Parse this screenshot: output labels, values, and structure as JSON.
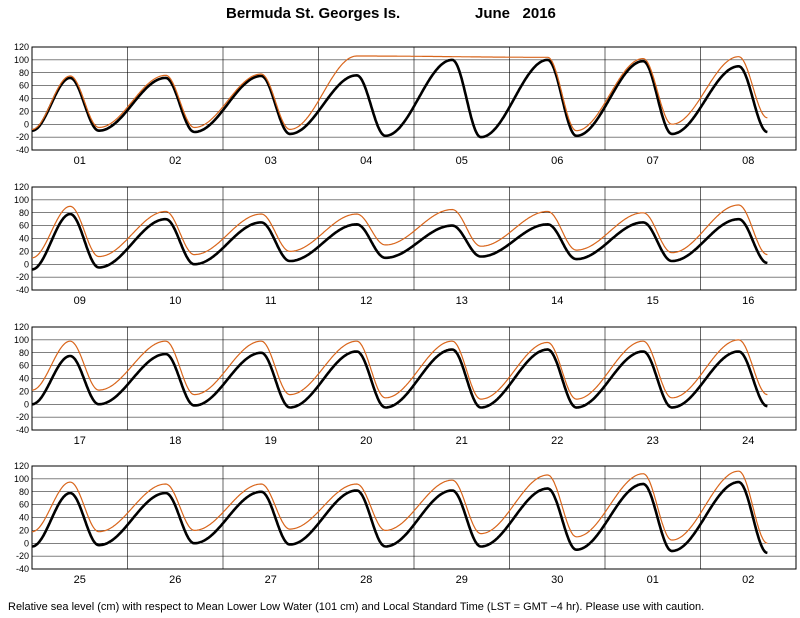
{
  "title": {
    "station": "Bermuda St. Georges Is.",
    "month": "June",
    "year": "2016"
  },
  "footer": "Relative sea level (cm) with respect to Mean Lower Low Water (101 cm) and Local Standard Time (LST = GMT −4 hr). Please use with caution.",
  "colors": {
    "observed": "#d9661c",
    "predicted": "#000000",
    "grid": "#000000"
  },
  "chart_data": [
    {
      "type": "line",
      "panel": 1,
      "ylim": [
        -40,
        120
      ],
      "yticks": [
        -40,
        -20,
        0,
        20,
        40,
        60,
        80,
        100,
        120
      ],
      "x_unit": "days",
      "days": [
        "01",
        "02",
        "03",
        "04",
        "05",
        "06",
        "07",
        "08"
      ],
      "series": [
        {
          "role": "predicted",
          "x": [
            0,
            0.4,
            0.7,
            1.4,
            1.7,
            2.4,
            2.7,
            3.4,
            3.7,
            4.4,
            4.7,
            5.4,
            5.7,
            6.4,
            6.7,
            7.4,
            7.7
          ],
          "y": [
            -10,
            72,
            -10,
            72,
            -12,
            75,
            -15,
            76,
            -18,
            100,
            -20,
            100,
            -18,
            98,
            -15,
            90,
            -12
          ]
        },
        {
          "role": "observed",
          "x": [
            0,
            0.4,
            0.7,
            1.4,
            1.7,
            2.4,
            2.7,
            3.4,
            5.4,
            5.7,
            6.4,
            6.7,
            7.4,
            7.7
          ],
          "y": [
            -8,
            75,
            -5,
            76,
            -5,
            78,
            -8,
            106,
            104,
            -10,
            102,
            0,
            105,
            10
          ]
        }
      ]
    },
    {
      "type": "line",
      "panel": 2,
      "ylim": [
        -40,
        120
      ],
      "yticks": [
        -40,
        -20,
        0,
        20,
        40,
        60,
        80,
        100,
        120
      ],
      "x_unit": "days",
      "days": [
        "09",
        "10",
        "11",
        "12",
        "13",
        "14",
        "15",
        "16"
      ],
      "series": [
        {
          "role": "predicted",
          "x": [
            0,
            0.4,
            0.7,
            1.4,
            1.7,
            2.4,
            2.7,
            3.4,
            3.7,
            4.4,
            4.7,
            5.4,
            5.7,
            6.4,
            6.7,
            7.4,
            7.7
          ],
          "y": [
            -8,
            78,
            -5,
            70,
            0,
            65,
            5,
            62,
            10,
            60,
            12,
            62,
            8,
            65,
            5,
            70,
            2
          ]
        },
        {
          "role": "observed",
          "x": [
            0,
            0.4,
            0.7,
            1.4,
            1.7,
            2.4,
            2.7,
            3.4,
            3.7,
            4.4,
            4.7,
            5.4,
            5.7,
            6.4,
            6.7,
            7.4,
            7.7
          ],
          "y": [
            10,
            90,
            12,
            82,
            15,
            78,
            20,
            78,
            30,
            85,
            28,
            82,
            22,
            80,
            18,
            92,
            15
          ]
        }
      ]
    },
    {
      "type": "line",
      "panel": 3,
      "ylim": [
        -40,
        120
      ],
      "yticks": [
        -40,
        -20,
        0,
        20,
        40,
        60,
        80,
        100,
        120
      ],
      "x_unit": "days",
      "days": [
        "17",
        "18",
        "19",
        "20",
        "21",
        "22",
        "23",
        "24"
      ],
      "series": [
        {
          "role": "predicted",
          "x": [
            0,
            0.4,
            0.7,
            1.4,
            1.7,
            2.4,
            2.7,
            3.4,
            3.7,
            4.4,
            4.7,
            5.4,
            5.7,
            6.4,
            6.7,
            7.4,
            7.7
          ],
          "y": [
            0,
            75,
            0,
            78,
            -2,
            80,
            -5,
            82,
            -5,
            85,
            -5,
            85,
            -5,
            82,
            -5,
            82,
            -3
          ]
        },
        {
          "role": "observed",
          "x": [
            0,
            0.4,
            0.7,
            1.4,
            1.7,
            2.4,
            2.7,
            3.4,
            3.7,
            4.4,
            4.7,
            5.4,
            5.7,
            6.4,
            6.7,
            7.4,
            7.7
          ],
          "y": [
            22,
            98,
            22,
            98,
            15,
            98,
            15,
            98,
            10,
            98,
            8,
            96,
            8,
            98,
            10,
            100,
            15
          ]
        }
      ]
    },
    {
      "type": "line",
      "panel": 4,
      "ylim": [
        -40,
        120
      ],
      "yticks": [
        -40,
        -20,
        0,
        20,
        40,
        60,
        80,
        100,
        120
      ],
      "x_unit": "days",
      "days": [
        "25",
        "26",
        "27",
        "28",
        "29",
        "30",
        "01",
        "02"
      ],
      "series": [
        {
          "role": "predicted",
          "x": [
            0,
            0.4,
            0.7,
            1.4,
            1.7,
            2.4,
            2.7,
            3.4,
            3.7,
            4.4,
            4.7,
            5.4,
            5.7,
            6.4,
            6.7,
            7.4,
            7.7
          ],
          "y": [
            -5,
            78,
            -3,
            78,
            0,
            80,
            -2,
            82,
            -5,
            82,
            -5,
            85,
            -10,
            92,
            -12,
            95,
            -15
          ]
        },
        {
          "role": "observed",
          "x": [
            0,
            0.4,
            0.7,
            1.4,
            1.7,
            2.4,
            2.7,
            3.4,
            3.7,
            4.4,
            4.7,
            5.4,
            5.7,
            6.4,
            6.7,
            7.4,
            7.7
          ],
          "y": [
            18,
            95,
            18,
            92,
            20,
            92,
            22,
            92,
            20,
            98,
            15,
            106,
            10,
            108,
            5,
            112,
            0
          ]
        }
      ]
    }
  ]
}
